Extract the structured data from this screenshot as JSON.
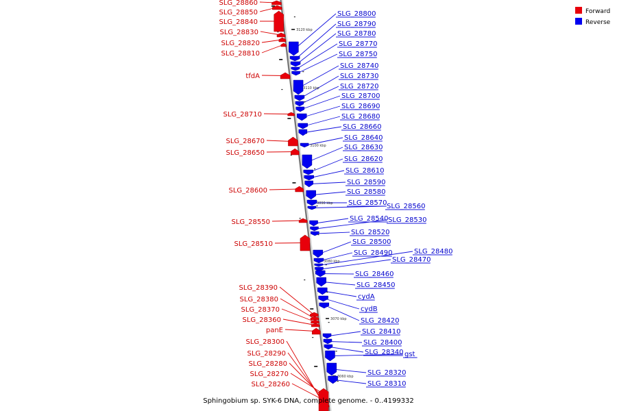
{
  "caption": "Sphingobium sp. SYK-6 DNA, complete genome. - 0..4199332",
  "legend": {
    "forward": {
      "label": "Forward",
      "color": "#e8000b"
    },
    "reverse": {
      "label": "Reverse",
      "color": "#0000f0"
    }
  },
  "ticks": [
    "3120 kbp",
    "3110 kbp",
    "3100 kbp",
    "3090 kbp",
    "3080 kbp",
    "3070 kbp",
    "3060 kbp"
  ],
  "forward_genes": [
    "SLG_28860",
    "SLG_28850",
    "SLG_28840",
    "SLG_28830",
    "SLG_28820",
    "SLG_28810",
    "tfdA",
    "SLG_28710",
    "SLG_28670",
    "SLG_28650",
    "SLG_28600",
    "SLG_28550",
    "SLG_28510",
    "SLG_28390",
    "SLG_28380",
    "SLG_28370",
    "SLG_28360",
    "panE",
    "SLG_28300",
    "SLG_28290",
    "SLG_28280",
    "SLG_28270",
    "SLG_28260"
  ],
  "reverse_genes": [
    "SLG_28800",
    "SLG_28790",
    "SLG_28780",
    "SLG_28770",
    "SLG_28750",
    "SLG_28740",
    "SLG_28730",
    "SLG_28720",
    "SLG_28700",
    "SLG_28690",
    "SLG_28680",
    "SLG_28660",
    "SLG_28640",
    "SLG_28630",
    "SLG_28620",
    "SLG_28610",
    "SLG_28590",
    "SLG_28580",
    "SLG_28570",
    "SLG_28560",
    "SLG_28540",
    "SLG_28530",
    "SLG_28520",
    "SLG_28500",
    "SLG_28490",
    "SLG_28480",
    "SLG_28470",
    "SLG_28460",
    "SLG_28450",
    "cydA",
    "cydB",
    "SLG_28420",
    "SLG_28410",
    "SLG_28400",
    "SLG_28340",
    "gst",
    "SLG_28320",
    "SLG_28310"
  ]
}
